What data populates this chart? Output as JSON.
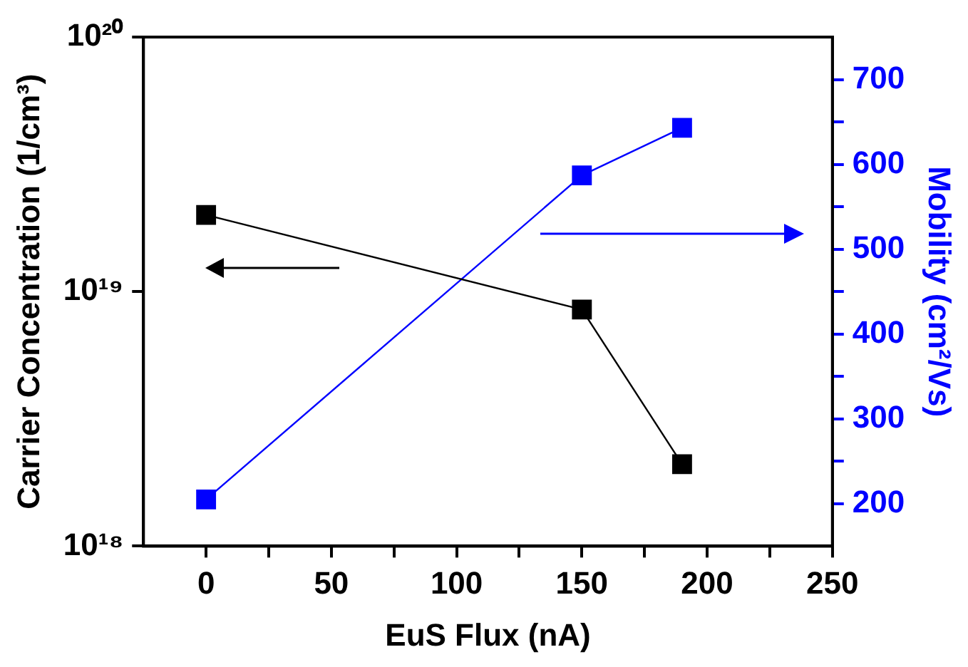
{
  "chart_data": {
    "type": "line",
    "xlabel": "EuS Flux (nA)",
    "ylabel": "Carrier Concentration (1/cm³)",
    "y2label": "Mobility (cm²/Vs)",
    "x": [
      0,
      150,
      190
    ],
    "series": [
      {
        "color": "#000000",
        "values": [
          2e+19,
          8.5e+18,
          2.1e+18
        ]
      },
      {
        "color": "#0000ff",
        "axis": "y2",
        "values": [
          205,
          587,
          643
        ]
      }
    ],
    "log": "y",
    "marker": "square",
    "line_style": "solid",
    "legend": false,
    "grid": false,
    "xlim": [
      -25,
      250
    ],
    "xticks": [
      0,
      {
        "value": 25,
        "label": null
      },
      50,
      {
        "value": 75,
        "label": null
      },
      100,
      {
        "value": 125,
        "label": null
      },
      150,
      {
        "value": 175,
        "label": null
      },
      200,
      {
        "value": 225,
        "label": null
      },
      250
    ],
    "ylim": [
      1e+18,
      1e+20
    ],
    "yticks": [
      {
        "value": 1e+18,
        "label": "10¹⁸"
      },
      {
        "value": 1e+19,
        "label": "10¹⁹"
      },
      {
        "value": 1e+20,
        "label": "10²⁰"
      }
    ],
    "y2lim": [
      150,
      750
    ],
    "y2ticks": [
      200,
      {
        "value": 250,
        "label": null
      },
      300,
      {
        "value": 350,
        "label": null
      },
      400,
      {
        "value": 450,
        "label": null
      },
      500,
      {
        "value": 550,
        "label": null
      },
      600,
      {
        "value": 650,
        "label": null
      },
      700
    ]
  }
}
